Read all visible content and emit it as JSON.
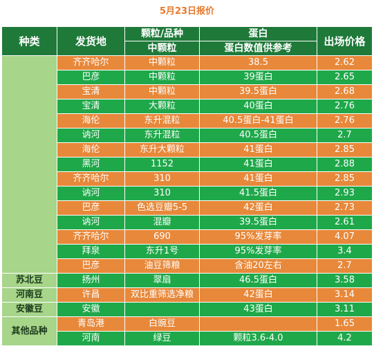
{
  "title": "5月23日报价",
  "headers": {
    "type": "种类",
    "origin": "发货地",
    "grain_top": "颗粒/品种",
    "grain_sub": "中颗粒",
    "protein_top": "蛋白",
    "protein_sub": "蛋白数值供参考",
    "price": "出场价格"
  },
  "groups": [
    {
      "label": "",
      "rows": [
        {
          "origin": "齐齐哈尔",
          "grain": "中颗粒",
          "protein": "38.5",
          "price": "2.62",
          "tone": "o"
        },
        {
          "origin": "巴彦",
          "grain": "中颗粒",
          "protein": "39蛋白",
          "price": "2.65",
          "tone": "g"
        },
        {
          "origin": "宝清",
          "grain": "中颗粒",
          "protein": "39.5蛋白",
          "price": "2.68",
          "tone": "o"
        },
        {
          "origin": "宝清",
          "grain": "大颗粒",
          "protein": "40蛋白",
          "price": "2.76",
          "tone": "g"
        },
        {
          "origin": "海伦",
          "grain": "东升混粒",
          "protein": "40.5蛋白-41蛋白",
          "price": "2.76",
          "tone": "o"
        },
        {
          "origin": "讷河",
          "grain": "东升混粒",
          "protein": "40.5蛋白",
          "price": "2.7",
          "tone": "g"
        },
        {
          "origin": "海伦",
          "grain": "东升大颗粒",
          "protein": "41蛋白",
          "price": "2.85",
          "tone": "o"
        },
        {
          "origin": "黑河",
          "grain": "1152",
          "protein": "41蛋白",
          "price": "2.88",
          "tone": "g"
        },
        {
          "origin": "齐齐哈尔",
          "grain": "310",
          "protein": "41蛋白",
          "price": "2.85",
          "tone": "o"
        },
        {
          "origin": "讷河",
          "grain": "310",
          "protein": "41.5蛋白",
          "price": "2.93",
          "tone": "g"
        },
        {
          "origin": "巴彦",
          "grain": "色选豆瓣5-5",
          "protein": "42蛋白",
          "price": "2.73",
          "tone": "o"
        },
        {
          "origin": "讷河",
          "grain": "混瓣",
          "protein": "39.5蛋白",
          "price": "2.61",
          "tone": "g"
        },
        {
          "origin": "齐齐哈尔",
          "grain": "690",
          "protein": "95%发芽率",
          "price": "4.07",
          "tone": "o"
        },
        {
          "origin": "拜泉",
          "grain": "东升1号",
          "protein": "95%发芽率",
          "price": "3.4",
          "tone": "g"
        },
        {
          "origin": "巴彦",
          "grain": "油豆筛粮",
          "protein": "含油20左右",
          "price": "2.7",
          "tone": "o"
        }
      ]
    },
    {
      "label": "苏北豆",
      "rows": [
        {
          "origin": "扬州",
          "grain": "翠扇",
          "protein": "46.5蛋白",
          "price": "3.58",
          "tone": "g"
        }
      ]
    },
    {
      "label": "河南豆",
      "rows": [
        {
          "origin": "许昌",
          "grain": "双比重筛选净粮",
          "protein": "42蛋白",
          "price": "3.14",
          "tone": "o"
        }
      ]
    },
    {
      "label": "安徽豆",
      "rows": [
        {
          "origin": "安徽",
          "grain": "",
          "protein": "43蛋白",
          "price": "3.11",
          "tone": "g"
        }
      ]
    },
    {
      "label": "其他品种",
      "rows": [
        {
          "origin": "青岛港",
          "grain": "白豌豆",
          "protein": "",
          "price": "1.65",
          "tone": "o"
        },
        {
          "origin": "河南",
          "grain": "绿豆",
          "protein": "颗粒3.6-4.0",
          "price": "4.2",
          "tone": "g"
        }
      ]
    }
  ]
}
